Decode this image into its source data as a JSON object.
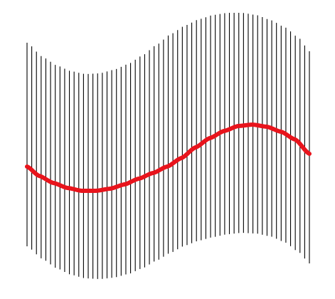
{
  "figure": {
    "line_count": 61,
    "line_color": "#000000",
    "curve_color": "#e8141c",
    "background_color": "#ffffff"
  }
}
